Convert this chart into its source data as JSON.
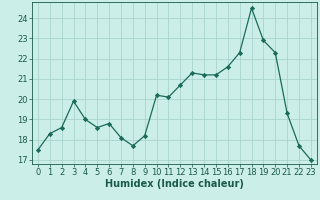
{
  "x": [
    0,
    1,
    2,
    3,
    4,
    5,
    6,
    7,
    8,
    9,
    10,
    11,
    12,
    13,
    14,
    15,
    16,
    17,
    18,
    19,
    20,
    21,
    22,
    23
  ],
  "y": [
    17.5,
    18.3,
    18.6,
    19.9,
    19.0,
    18.6,
    18.8,
    18.1,
    17.7,
    18.2,
    20.2,
    20.1,
    20.7,
    21.3,
    21.2,
    21.2,
    21.6,
    22.3,
    24.5,
    22.9,
    22.3,
    19.3,
    17.7,
    17.0
  ],
  "line_color": "#1a6b5a",
  "marker": "D",
  "marker_size": 2.2,
  "bg_color": "#cceee8",
  "grid_color": "#aad4ce",
  "xlabel": "Humidex (Indice chaleur)",
  "xlim": [
    -0.5,
    23.5
  ],
  "ylim": [
    16.8,
    24.8
  ],
  "yticks": [
    17,
    18,
    19,
    20,
    21,
    22,
    23,
    24
  ],
  "xticks": [
    0,
    1,
    2,
    3,
    4,
    5,
    6,
    7,
    8,
    9,
    10,
    11,
    12,
    13,
    14,
    15,
    16,
    17,
    18,
    19,
    20,
    21,
    22,
    23
  ],
  "tick_color": "#1a5a4a",
  "font_size": 6.0,
  "xlabel_size": 7.0,
  "lw": 0.9
}
